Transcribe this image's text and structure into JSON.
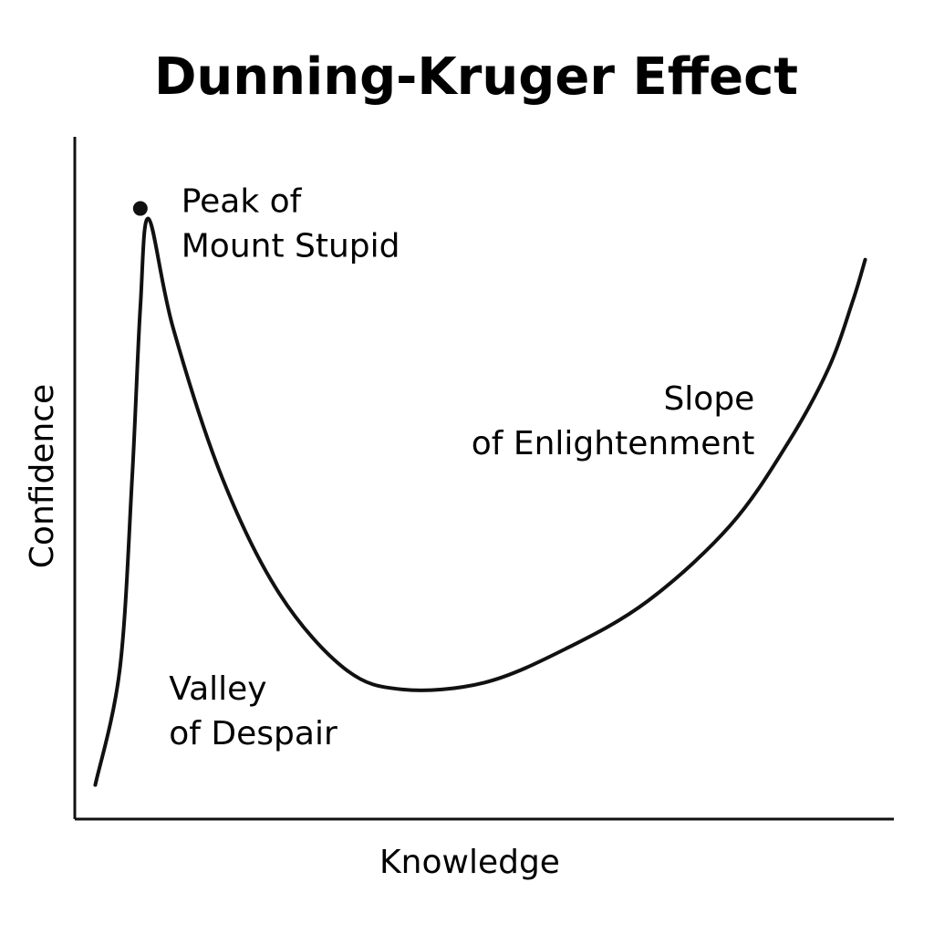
{
  "chart_data": {
    "type": "line",
    "title": "Dunning-Kruger Effect",
    "xlabel": "Knowledge",
    "ylabel": "Confidence",
    "xlim": [
      0,
      100
    ],
    "ylim": [
      0,
      100
    ],
    "grid": false,
    "series": [
      {
        "x": [
          2.5,
          5.5,
          7,
          8,
          9,
          12,
          18,
          25,
          33,
          40,
          50,
          60,
          70,
          80,
          87,
          92,
          95,
          96.5
        ],
        "y": [
          5,
          22,
          50,
          75,
          88,
          72,
          50,
          33,
          22,
          19,
          20,
          25,
          32,
          43,
          55,
          66,
          76,
          82
        ]
      }
    ],
    "highlight_point": {
      "x": 8,
      "y": 89.5
    },
    "annotations": [
      {
        "lines": [
          "Peak of",
          "Mount Stupid"
        ],
        "x": 13,
        "y": 89
      },
      {
        "lines": [
          "Valley",
          "of Despair"
        ],
        "x": 11.5,
        "y": 17.5
      },
      {
        "lines": [
          "Slope",
          "of Enlightenment"
        ],
        "x": 83,
        "y": 60
      }
    ]
  }
}
